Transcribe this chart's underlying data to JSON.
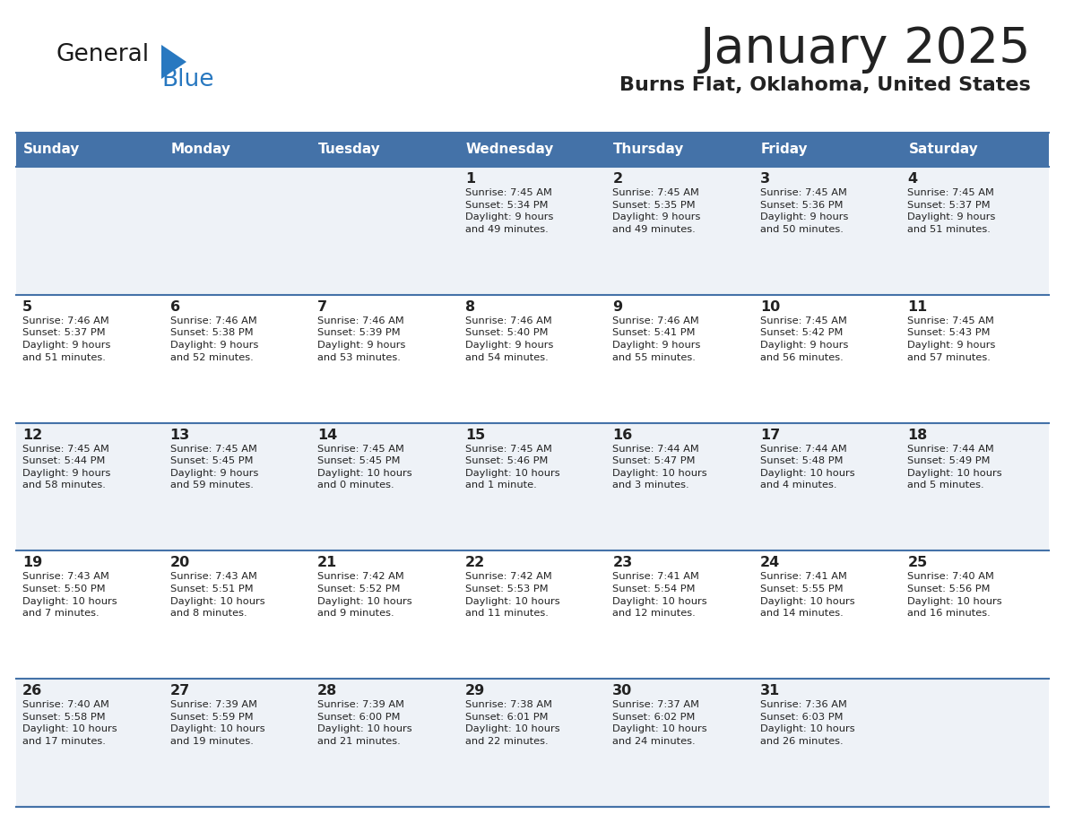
{
  "title": "January 2025",
  "subtitle": "Burns Flat, Oklahoma, United States",
  "header_color": "#4472a8",
  "header_text_color": "#ffffff",
  "cell_bg_odd": "#eef2f7",
  "cell_bg_even": "#ffffff",
  "border_color": "#4472a8",
  "text_color": "#222222",
  "logo_black": "#1a1a1a",
  "logo_blue": "#2878c0",
  "days_of_week": [
    "Sunday",
    "Monday",
    "Tuesday",
    "Wednesday",
    "Thursday",
    "Friday",
    "Saturday"
  ],
  "weeks": [
    [
      {
        "day": null
      },
      {
        "day": null
      },
      {
        "day": null
      },
      {
        "day": 1,
        "sunrise": "7:45 AM",
        "sunset": "5:34 PM",
        "daylight": "9 hours\nand 49 minutes."
      },
      {
        "day": 2,
        "sunrise": "7:45 AM",
        "sunset": "5:35 PM",
        "daylight": "9 hours\nand 49 minutes."
      },
      {
        "day": 3,
        "sunrise": "7:45 AM",
        "sunset": "5:36 PM",
        "daylight": "9 hours\nand 50 minutes."
      },
      {
        "day": 4,
        "sunrise": "7:45 AM",
        "sunset": "5:37 PM",
        "daylight": "9 hours\nand 51 minutes."
      }
    ],
    [
      {
        "day": 5,
        "sunrise": "7:46 AM",
        "sunset": "5:37 PM",
        "daylight": "9 hours\nand 51 minutes."
      },
      {
        "day": 6,
        "sunrise": "7:46 AM",
        "sunset": "5:38 PM",
        "daylight": "9 hours\nand 52 minutes."
      },
      {
        "day": 7,
        "sunrise": "7:46 AM",
        "sunset": "5:39 PM",
        "daylight": "9 hours\nand 53 minutes."
      },
      {
        "day": 8,
        "sunrise": "7:46 AM",
        "sunset": "5:40 PM",
        "daylight": "9 hours\nand 54 minutes."
      },
      {
        "day": 9,
        "sunrise": "7:46 AM",
        "sunset": "5:41 PM",
        "daylight": "9 hours\nand 55 minutes."
      },
      {
        "day": 10,
        "sunrise": "7:45 AM",
        "sunset": "5:42 PM",
        "daylight": "9 hours\nand 56 minutes."
      },
      {
        "day": 11,
        "sunrise": "7:45 AM",
        "sunset": "5:43 PM",
        "daylight": "9 hours\nand 57 minutes."
      }
    ],
    [
      {
        "day": 12,
        "sunrise": "7:45 AM",
        "sunset": "5:44 PM",
        "daylight": "9 hours\nand 58 minutes."
      },
      {
        "day": 13,
        "sunrise": "7:45 AM",
        "sunset": "5:45 PM",
        "daylight": "9 hours\nand 59 minutes."
      },
      {
        "day": 14,
        "sunrise": "7:45 AM",
        "sunset": "5:45 PM",
        "daylight": "10 hours\nand 0 minutes."
      },
      {
        "day": 15,
        "sunrise": "7:45 AM",
        "sunset": "5:46 PM",
        "daylight": "10 hours\nand 1 minute."
      },
      {
        "day": 16,
        "sunrise": "7:44 AM",
        "sunset": "5:47 PM",
        "daylight": "10 hours\nand 3 minutes."
      },
      {
        "day": 17,
        "sunrise": "7:44 AM",
        "sunset": "5:48 PM",
        "daylight": "10 hours\nand 4 minutes."
      },
      {
        "day": 18,
        "sunrise": "7:44 AM",
        "sunset": "5:49 PM",
        "daylight": "10 hours\nand 5 minutes."
      }
    ],
    [
      {
        "day": 19,
        "sunrise": "7:43 AM",
        "sunset": "5:50 PM",
        "daylight": "10 hours\nand 7 minutes."
      },
      {
        "day": 20,
        "sunrise": "7:43 AM",
        "sunset": "5:51 PM",
        "daylight": "10 hours\nand 8 minutes."
      },
      {
        "day": 21,
        "sunrise": "7:42 AM",
        "sunset": "5:52 PM",
        "daylight": "10 hours\nand 9 minutes."
      },
      {
        "day": 22,
        "sunrise": "7:42 AM",
        "sunset": "5:53 PM",
        "daylight": "10 hours\nand 11 minutes."
      },
      {
        "day": 23,
        "sunrise": "7:41 AM",
        "sunset": "5:54 PM",
        "daylight": "10 hours\nand 12 minutes."
      },
      {
        "day": 24,
        "sunrise": "7:41 AM",
        "sunset": "5:55 PM",
        "daylight": "10 hours\nand 14 minutes."
      },
      {
        "day": 25,
        "sunrise": "7:40 AM",
        "sunset": "5:56 PM",
        "daylight": "10 hours\nand 16 minutes."
      }
    ],
    [
      {
        "day": 26,
        "sunrise": "7:40 AM",
        "sunset": "5:58 PM",
        "daylight": "10 hours\nand 17 minutes."
      },
      {
        "day": 27,
        "sunrise": "7:39 AM",
        "sunset": "5:59 PM",
        "daylight": "10 hours\nand 19 minutes."
      },
      {
        "day": 28,
        "sunrise": "7:39 AM",
        "sunset": "6:00 PM",
        "daylight": "10 hours\nand 21 minutes."
      },
      {
        "day": 29,
        "sunrise": "7:38 AM",
        "sunset": "6:01 PM",
        "daylight": "10 hours\nand 22 minutes."
      },
      {
        "day": 30,
        "sunrise": "7:37 AM",
        "sunset": "6:02 PM",
        "daylight": "10 hours\nand 24 minutes."
      },
      {
        "day": 31,
        "sunrise": "7:36 AM",
        "sunset": "6:03 PM",
        "daylight": "10 hours\nand 26 minutes."
      },
      {
        "day": null
      }
    ]
  ]
}
